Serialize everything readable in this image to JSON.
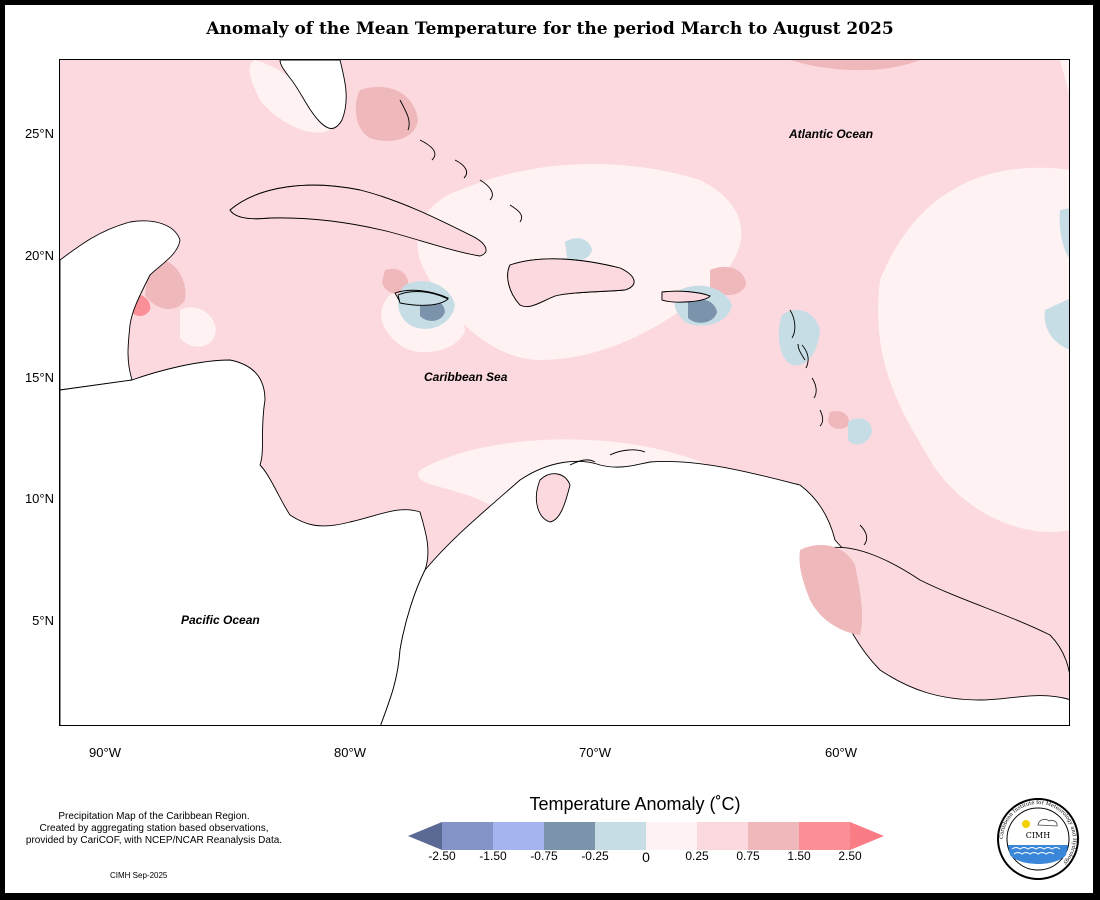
{
  "title": "Anomaly of the Mean Temperature for the period March to August 2025",
  "map": {
    "latitude_labels": [
      "25°N",
      "20°N",
      "15°N",
      "10°N",
      "5°N"
    ],
    "longitude_labels": [
      "90°W",
      "80°W",
      "70°W",
      "60°W"
    ],
    "ocean_labels": {
      "atlantic": "Atlantic Ocean",
      "caribbean": "Caribbean Sea",
      "pacific": "Pacific Ocean"
    }
  },
  "legend": {
    "title": "Temperature Anomaly (˚C)",
    "labels": [
      "-2.50",
      "-1.50",
      "-0.75",
      "-0.25",
      "0",
      "0.25",
      "0.75",
      "1.50",
      "2.50"
    ],
    "colors": [
      "#5a6a94",
      "#8494c8",
      "#a6b4ee",
      "#7c93ac",
      "#c6dde6",
      "#fff2f3",
      "#fbd9df",
      "#efb8bb",
      "#fb8f97",
      "#fa7c84"
    ]
  },
  "caption": {
    "line1": "Precipitation Map of the Caribbean Region.",
    "line2": "Created by aggregating station based observations,",
    "line3": "provided by CariCOF, with NCEP/NCAR Reanalysis Data.",
    "stamp": "CIMH Sep-2025"
  },
  "logo": {
    "text": "CIMH",
    "ring_text": "Caribbean Institute for Meteorology and Hydrology"
  }
}
